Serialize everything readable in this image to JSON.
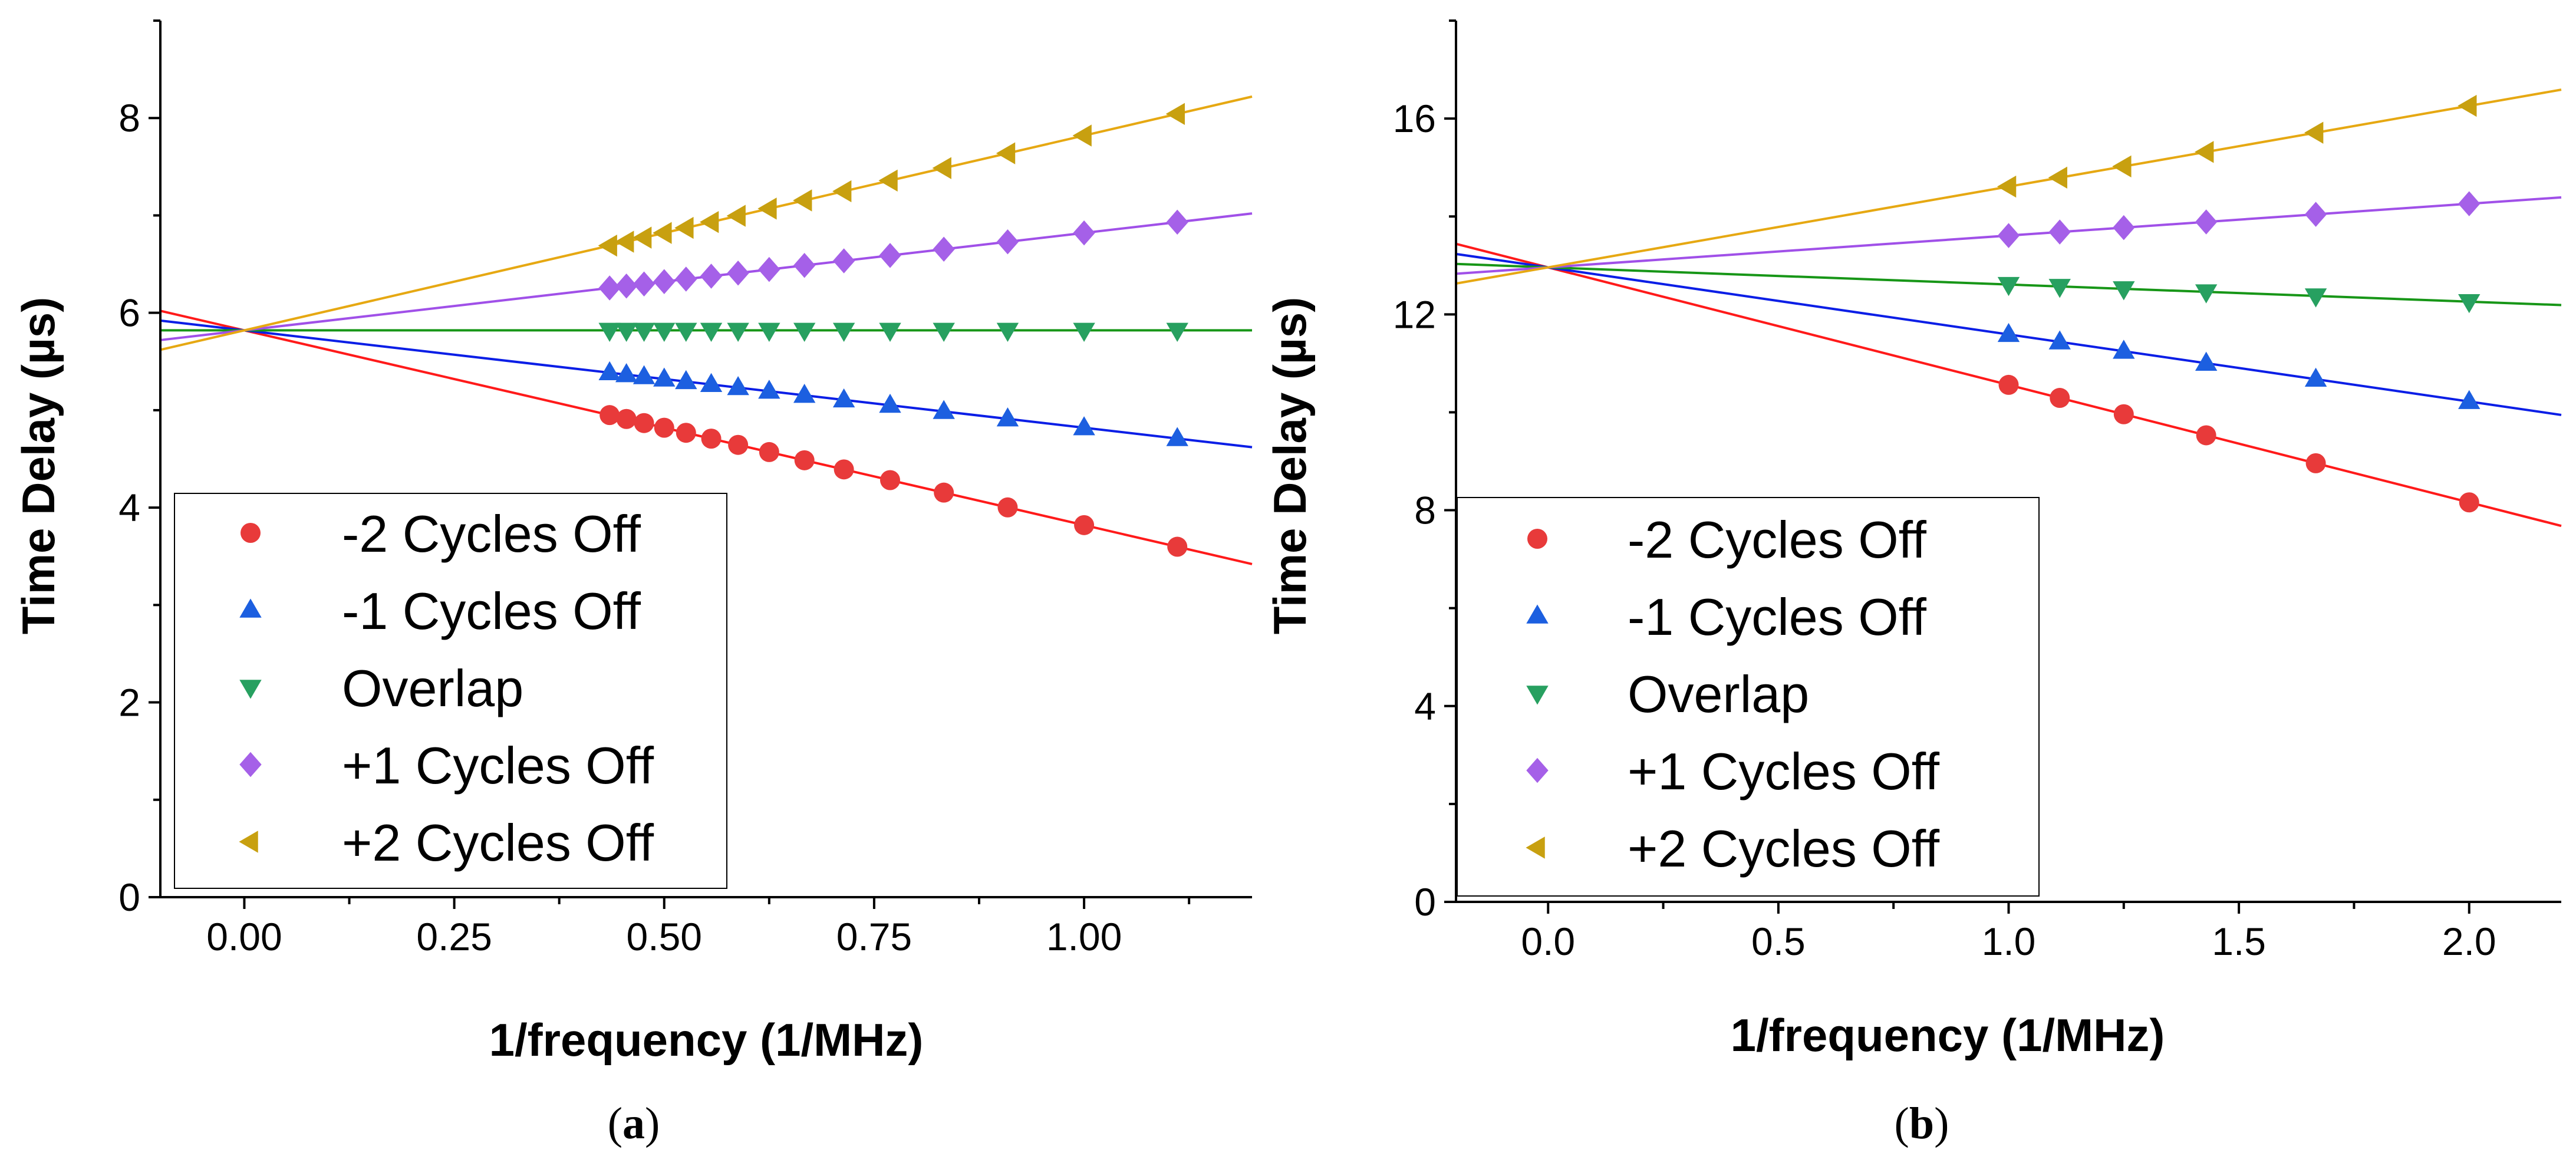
{
  "chart_data": [
    {
      "panel": "a",
      "caption_open": "(",
      "caption_letter": "a",
      "caption_close": ")",
      "type": "scatter",
      "title": "",
      "xlabel": "1/frequency (1/MHz)",
      "ylabel": "Time Delay (µs)",
      "xlim": [
        -0.1,
        1.2
      ],
      "ylim": [
        0,
        9
      ],
      "xticks": [
        0.0,
        0.25,
        0.5,
        0.75,
        1.0
      ],
      "xtick_labels": [
        "0.00",
        "0.25",
        "0.50",
        "0.75",
        "1.00"
      ],
      "yticks": [
        0,
        2,
        4,
        6,
        8
      ],
      "ytick_labels": [
        "0",
        "2",
        "4",
        "6",
        "8"
      ],
      "x": [
        0.435,
        0.455,
        0.476,
        0.5,
        0.526,
        0.556,
        0.588,
        0.625,
        0.667,
        0.714,
        0.769,
        0.833,
        0.909,
        1.0,
        1.111
      ],
      "series": [
        {
          "name": "-2 Cycles Off",
          "marker": "circle",
          "color": "#e83a3a",
          "fit": {
            "slope": -2.0,
            "intercept": 5.82
          }
        },
        {
          "name": "-1 Cycles Off",
          "marker": "triangle-up",
          "color": "#1c5fe0",
          "fit": {
            "slope": -1.0,
            "intercept": 5.82
          }
        },
        {
          "name": "Overlap",
          "marker": "triangle-down",
          "color": "#27a060",
          "fit": {
            "slope": 0.0,
            "intercept": 5.82
          }
        },
        {
          "name": "+1 Cycles Off",
          "marker": "diamond",
          "color": "#a560e8",
          "fit": {
            "slope": 1.0,
            "intercept": 5.82
          }
        },
        {
          "name": "+2 Cycles Off",
          "marker": "triangle-left",
          "color": "#c8a010",
          "fit": {
            "slope": 2.0,
            "intercept": 5.82
          }
        }
      ],
      "line_colors": [
        "#ff1a1a",
        "#0a1ee6",
        "#179617",
        "#a050e8",
        "#e6a812"
      ],
      "legend_position": "bottom-left"
    },
    {
      "panel": "b",
      "caption_open": "(",
      "caption_letter": "b",
      "caption_close": ")",
      "type": "scatter",
      "title": "",
      "xlabel": "1/frequency (1/MHz)",
      "ylabel": "Time Delay (µs)",
      "xlim": [
        -0.2,
        2.2
      ],
      "ylim": [
        0,
        18
      ],
      "xticks": [
        0.0,
        0.5,
        1.0,
        1.5,
        2.0
      ],
      "xtick_labels": [
        "0.0",
        "0.5",
        "1.0",
        "1.5",
        "2.0"
      ],
      "yticks": [
        0,
        4,
        8,
        12,
        16
      ],
      "ytick_labels": [
        "0",
        "4",
        "8",
        "12",
        "16"
      ],
      "x": [
        1.0,
        1.111,
        1.25,
        1.429,
        1.667,
        2.0
      ],
      "series": [
        {
          "name": "-2 Cycles Off",
          "marker": "circle",
          "color": "#e83a3a",
          "fit": {
            "slope": -2.4,
            "intercept": 12.96
          }
        },
        {
          "name": "-1 Cycles Off",
          "marker": "triangle-up",
          "color": "#1c5fe0",
          "fit": {
            "slope": -1.37,
            "intercept": 12.96
          }
        },
        {
          "name": "Overlap",
          "marker": "triangle-down",
          "color": "#27a060",
          "fit": {
            "slope": -0.35,
            "intercept": 12.96
          }
        },
        {
          "name": "+1 Cycles Off",
          "marker": "diamond",
          "color": "#a560e8",
          "fit": {
            "slope": 0.65,
            "intercept": 12.96
          }
        },
        {
          "name": "+2 Cycles Off",
          "marker": "triangle-left",
          "color": "#c8a010",
          "fit": {
            "slope": 1.65,
            "intercept": 12.96
          }
        }
      ],
      "line_colors": [
        "#ff1a1a",
        "#0a1ee6",
        "#179617",
        "#a050e8",
        "#e6a812"
      ],
      "legend_position": "bottom-left"
    }
  ]
}
